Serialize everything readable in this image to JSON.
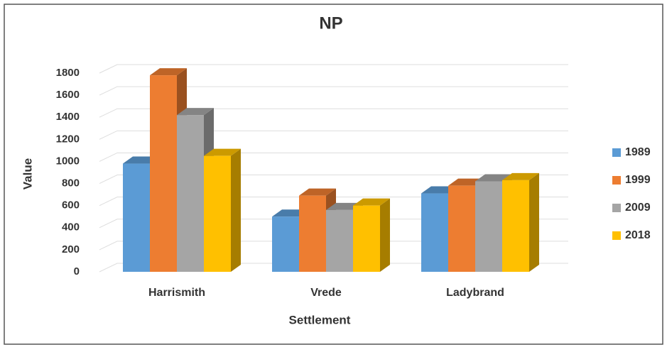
{
  "chart_data": {
    "type": "bar3d",
    "title": "NP",
    "x_label": "Settlement",
    "y_label": "Value",
    "categories": [
      "Harrismith",
      "Vrede",
      "Ladybrand"
    ],
    "series": [
      {
        "name": "1989",
        "color": "#5b9bd5",
        "values": [
          980,
          500,
          710
        ]
      },
      {
        "name": "1999",
        "color": "#ed7d31",
        "values": [
          1780,
          690,
          780
        ]
      },
      {
        "name": "2009",
        "color": "#a5a5a5",
        "values": [
          1420,
          560,
          820
        ]
      },
      {
        "name": "2018",
        "color": "#ffc000",
        "values": [
          1050,
          600,
          830
        ]
      }
    ],
    "ylim": [
      0,
      1800
    ],
    "yticks": [
      0,
      200,
      400,
      600,
      800,
      1000,
      1200,
      1400,
      1600,
      1800
    ],
    "grid": true,
    "legend": "right"
  }
}
